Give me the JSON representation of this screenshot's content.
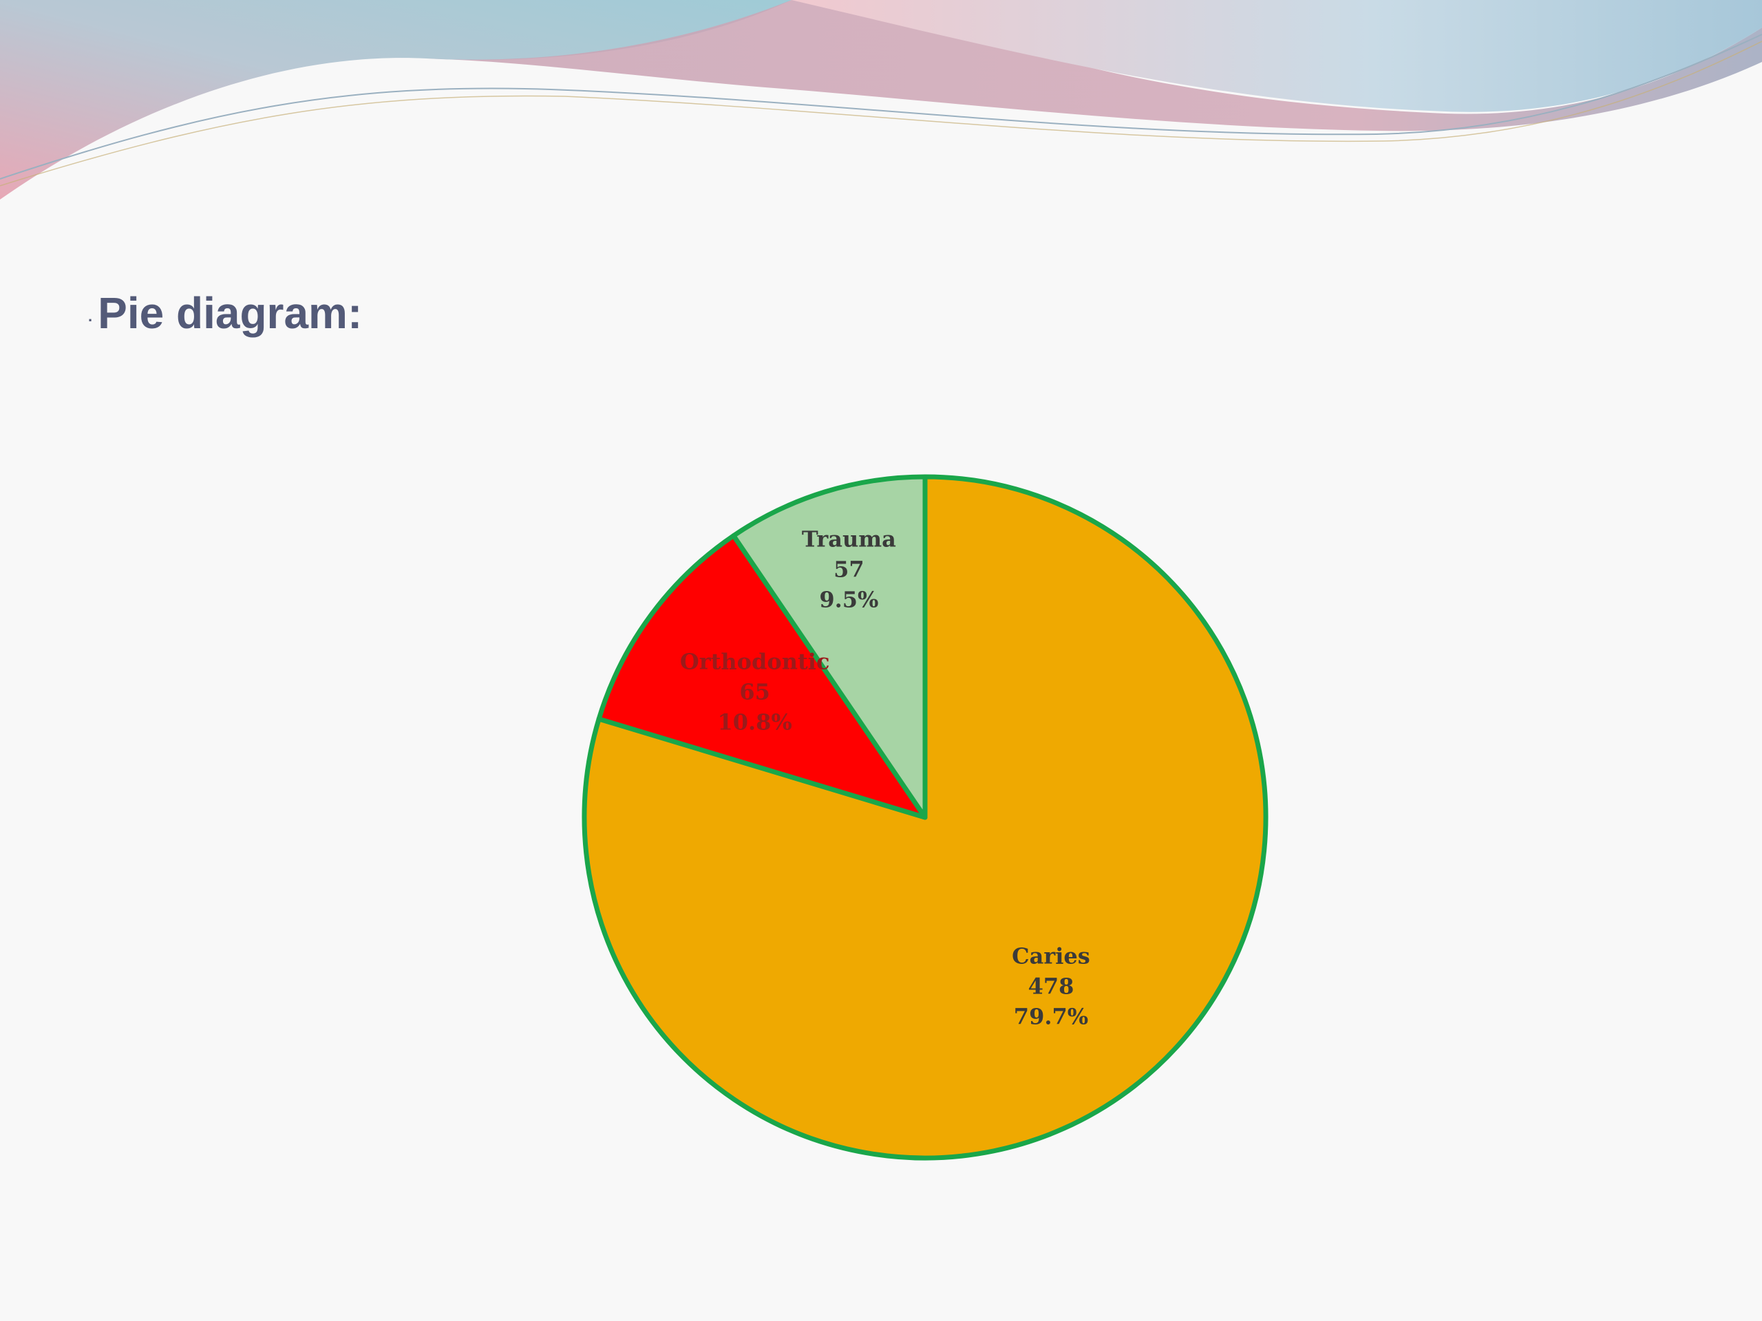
{
  "slide": {
    "bullet": ".",
    "title": "Pie diagram:"
  },
  "colors": {
    "title": "#535a78",
    "pie_border": "#1aa64a",
    "caries": "#efa901",
    "orthodontic": "#ff0000",
    "trauma": "#a7d4a5",
    "banner_pink": "#e7b8c4",
    "banner_blue": "#a8cad6"
  },
  "chart_data": {
    "type": "pie",
    "title": "",
    "start_angle_deg": 0,
    "direction": "clockwise",
    "slices": [
      {
        "label": "Caries",
        "value": 478,
        "percent": "79.7%",
        "color": "#efa901"
      },
      {
        "label": "Orthodontic",
        "value": 65,
        "percent": "10.8%",
        "color": "#ff0000"
      },
      {
        "label": "Trauma",
        "value": 57,
        "percent": "9.5%",
        "color": "#a7d4a5"
      }
    ]
  }
}
